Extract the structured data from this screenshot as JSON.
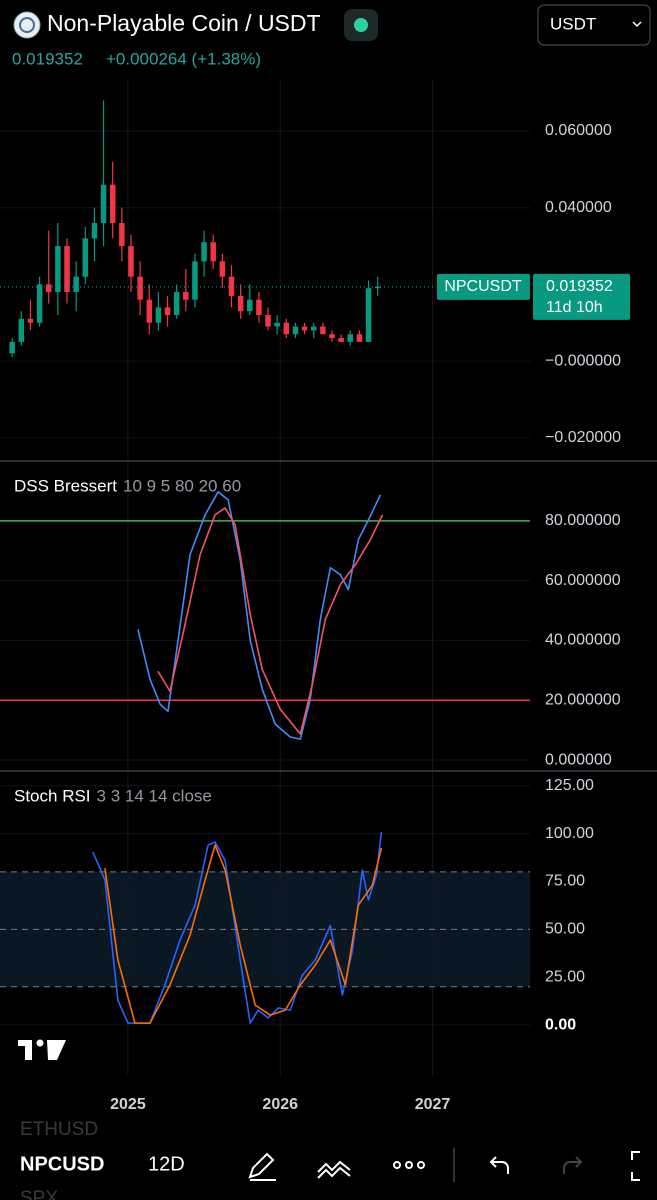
{
  "header": {
    "title": "Non-Playable Coin / USDT",
    "currency": "USDT",
    "price": "0.019352",
    "change": "+0.000264 (+1.38%)"
  },
  "chart_data": [
    {
      "type": "candlestick",
      "x": [
        2024.24,
        2024.3,
        2024.36,
        2024.42,
        2024.48,
        2024.54,
        2024.6,
        2024.66,
        2024.72,
        2024.78,
        2024.84,
        2024.9,
        2024.96,
        2025.02,
        2025.08,
        2025.14,
        2025.2,
        2025.26,
        2025.32,
        2025.38,
        2025.44,
        2025.5,
        2025.56,
        2025.62,
        2025.68,
        2025.74,
        2025.8,
        2025.86,
        2025.92,
        2025.98,
        2026.04,
        2026.1,
        2026.16,
        2026.22,
        2026.28,
        2026.34,
        2026.4,
        2026.46,
        2026.52,
        2026.58,
        2026.64
      ],
      "open": [
        0.002,
        0.005,
        0.011,
        0.01,
        0.02,
        0.018,
        0.03,
        0.018,
        0.022,
        0.032,
        0.036,
        0.046,
        0.036,
        0.03,
        0.022,
        0.016,
        0.01,
        0.014,
        0.012,
        0.018,
        0.016,
        0.026,
        0.031,
        0.026,
        0.022,
        0.017,
        0.013,
        0.016,
        0.012,
        0.009,
        0.01,
        0.007,
        0.009,
        0.008,
        0.009,
        0.007,
        0.006,
        0.005,
        0.007,
        0.005,
        0.019
      ],
      "high": [
        0.006,
        0.013,
        0.016,
        0.022,
        0.034,
        0.036,
        0.032,
        0.026,
        0.035,
        0.04,
        0.068,
        0.052,
        0.04,
        0.033,
        0.026,
        0.02,
        0.018,
        0.017,
        0.02,
        0.024,
        0.028,
        0.034,
        0.033,
        0.028,
        0.025,
        0.02,
        0.02,
        0.018,
        0.014,
        0.012,
        0.011,
        0.01,
        0.01,
        0.01,
        0.01,
        0.008,
        0.007,
        0.008,
        0.008,
        0.021,
        0.022
      ],
      "low": [
        0.001,
        0.004,
        0.008,
        0.009,
        0.015,
        0.012,
        0.015,
        0.013,
        0.02,
        0.026,
        0.03,
        0.032,
        0.026,
        0.018,
        0.012,
        0.007,
        0.008,
        0.009,
        0.011,
        0.013,
        0.014,
        0.022,
        0.024,
        0.019,
        0.014,
        0.011,
        0.012,
        0.01,
        0.008,
        0.007,
        0.006,
        0.006,
        0.007,
        0.006,
        0.007,
        0.005,
        0.005,
        0.004,
        0.005,
        0.005,
        0.017
      ],
      "close": [
        0.005,
        0.011,
        0.01,
        0.02,
        0.018,
        0.03,
        0.018,
        0.022,
        0.032,
        0.036,
        0.046,
        0.036,
        0.03,
        0.022,
        0.016,
        0.01,
        0.014,
        0.012,
        0.018,
        0.016,
        0.026,
        0.031,
        0.026,
        0.022,
        0.017,
        0.013,
        0.016,
        0.012,
        0.009,
        0.01,
        0.007,
        0.009,
        0.008,
        0.009,
        0.007,
        0.006,
        0.005,
        0.007,
        0.005,
        0.019,
        0.019352
      ],
      "up_color": "#089981",
      "down_color": "#f23645",
      "xlim": [
        2024.16,
        2027.64
      ],
      "xticks": [
        2025,
        2026,
        2027
      ],
      "ylim": [
        -0.0258,
        0.0733
      ],
      "yticks": [
        {
          "value": 0.06,
          "label": "0.060000"
        },
        {
          "value": 0.04,
          "label": "0.040000"
        },
        {
          "value": 0,
          "label": "−0.000000"
        },
        {
          "value": -0.02,
          "label": "−0.020000"
        }
      ],
      "grid": true,
      "last_label": {
        "symbol": "NPCUSDT",
        "price": "0.019352",
        "countdown": "11d 10h"
      }
    },
    {
      "type": "line",
      "title": "DSS Bressert",
      "params": "10 9 5 80 20 60",
      "series": [
        {
          "color": "#448aff",
          "x": [
            2025.066,
            2025.145,
            2025.211,
            2025.263,
            2025.329,
            2025.408,
            2025.507,
            2025.592,
            2025.658,
            2025.737,
            2025.803,
            2025.882,
            2025.967,
            2026.066,
            2026.132,
            2026.197,
            2026.263,
            2026.329,
            2026.395,
            2026.447,
            2026.513,
            2026.579,
            2026.658
          ],
          "values": [
            43.7,
            27,
            18.7,
            16.3,
            40,
            68.7,
            82,
            89.7,
            87,
            67,
            40,
            23.7,
            12,
            7.7,
            7,
            20.3,
            47,
            64.3,
            62,
            57,
            73.7,
            80.3,
            88.7
          ]
        },
        {
          "color": "#f7525f",
          "x": [
            2025.197,
            2025.276,
            2025.375,
            2025.474,
            2025.572,
            2025.638,
            2025.704,
            2025.803,
            2025.882,
            2026.0,
            2026.132,
            2026.211,
            2026.296,
            2026.395,
            2026.493,
            2026.592,
            2026.671
          ],
          "values": [
            29.7,
            23,
            45.3,
            68.7,
            82,
            84.3,
            78.7,
            48.7,
            30.3,
            17,
            8.7,
            25.3,
            47,
            58.7,
            65.3,
            73.7,
            82
          ]
        }
      ],
      "levels": [
        {
          "value": 80,
          "color": "#4caf50"
        },
        {
          "value": 20,
          "color": "#f23645"
        }
      ],
      "xlim": [
        2024.16,
        2027.64
      ],
      "xticks": [
        2025,
        2026,
        2027
      ],
      "ylim": [
        -3.33,
        99.67
      ],
      "yticks": [
        {
          "value": 80,
          "label": "80.000000"
        },
        {
          "value": 60,
          "label": "60.000000"
        },
        {
          "value": 40,
          "label": "40.000000"
        },
        {
          "value": 20,
          "label": "20.000000"
        },
        {
          "value": 0,
          "label": "0.000000"
        }
      ],
      "grid": true
    },
    {
      "type": "line",
      "title": "Stoch RSI",
      "params": "3 3 14 14 close",
      "series": [
        {
          "color": "#2962ff",
          "x": [
            2024.77,
            2024.849,
            2024.934,
            2025.0,
            2025.145,
            2025.243,
            2025.342,
            2025.441,
            2025.526,
            2025.572,
            2025.638,
            2025.737,
            2025.803,
            2025.855,
            2025.921,
            2025.987,
            2026.066,
            2026.145,
            2026.23,
            2026.329,
            2026.408,
            2026.474,
            2026.539,
            2026.579,
            2026.632,
            2026.664
          ],
          "values": [
            90.4,
            75.8,
            13,
            1,
            1,
            21,
            44.4,
            62.7,
            94,
            95.6,
            86,
            34,
            1,
            7.8,
            3.7,
            8.9,
            7.8,
            26,
            34,
            52,
            15.7,
            39,
            81,
            65.3,
            78.4,
            100.8
          ]
        },
        {
          "color": "#ff6d00",
          "x": [
            2024.849,
            2024.934,
            2025.046,
            2025.145,
            2025.276,
            2025.408,
            2025.507,
            2025.572,
            2025.638,
            2025.737,
            2025.836,
            2025.934,
            2026.033,
            2026.132,
            2026.23,
            2026.329,
            2026.428,
            2026.513,
            2026.605,
            2026.664
          ],
          "values": [
            82,
            34,
            1,
            1,
            21,
            47,
            75.8,
            94,
            81,
            42,
            10.4,
            5.2,
            7.8,
            21,
            31.3,
            44.4,
            21,
            62.7,
            73,
            92.5
          ]
        }
      ],
      "band": [
        20,
        80
      ],
      "midline": 50,
      "band_color": "#0a1824",
      "xlim": [
        2024.16,
        2027.64
      ],
      "xticks": [
        2025,
        2026,
        2027
      ],
      "ylim": [
        -26.1,
        132.2
      ],
      "yticks": [
        {
          "value": 125,
          "label": "125.00"
        },
        {
          "value": 100,
          "label": "100.00"
        },
        {
          "value": 75,
          "label": "75.00"
        },
        {
          "value": 50,
          "label": "50.00"
        },
        {
          "value": 25,
          "label": "25.00"
        },
        {
          "value": 0,
          "label": "0.00"
        }
      ],
      "grid": true
    }
  ],
  "toolbar": {
    "symbols": [
      "ETHUSD",
      "NPCUSD",
      "SPX"
    ],
    "interval": "12D"
  }
}
